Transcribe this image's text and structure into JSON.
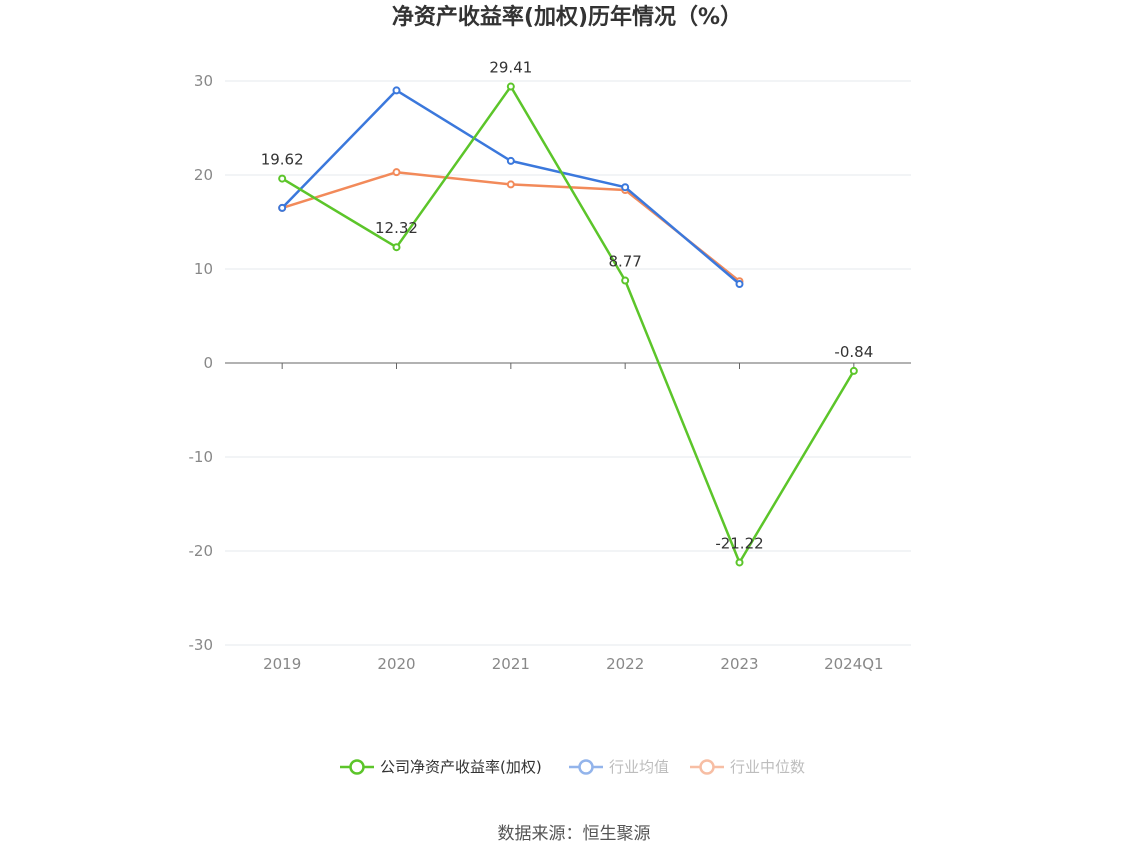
{
  "chart_data": {
    "type": "line",
    "title": "净资产收益率(加权)历年情况（%）",
    "categories": [
      "2019",
      "2020",
      "2021",
      "2022",
      "2023",
      "2024Q1"
    ],
    "ylim": [
      -30,
      30
    ],
    "yticks": [
      30,
      20,
      10,
      0,
      -10,
      -20,
      -30
    ],
    "grid": true,
    "legend_position": "bottom",
    "series": [
      {
        "name": "公司净资产收益率(加权)",
        "color": "#5cc52a",
        "values": [
          19.62,
          12.32,
          29.41,
          8.77,
          -21.22,
          -0.84
        ],
        "labels": [
          "19.62",
          "12.32",
          "29.41",
          "8.77",
          "-21.22",
          "-0.84"
        ],
        "active": true
      },
      {
        "name": "行业均值",
        "color": "#3b78dc",
        "values": [
          16.5,
          29.0,
          21.5,
          18.7,
          8.4,
          null
        ],
        "active": false
      },
      {
        "name": "行业中位数",
        "color": "#f28a5a",
        "values": [
          16.5,
          20.3,
          19.0,
          18.4,
          8.7,
          null
        ],
        "active": false
      }
    ]
  },
  "source_text": "数据来源：恒生聚源"
}
